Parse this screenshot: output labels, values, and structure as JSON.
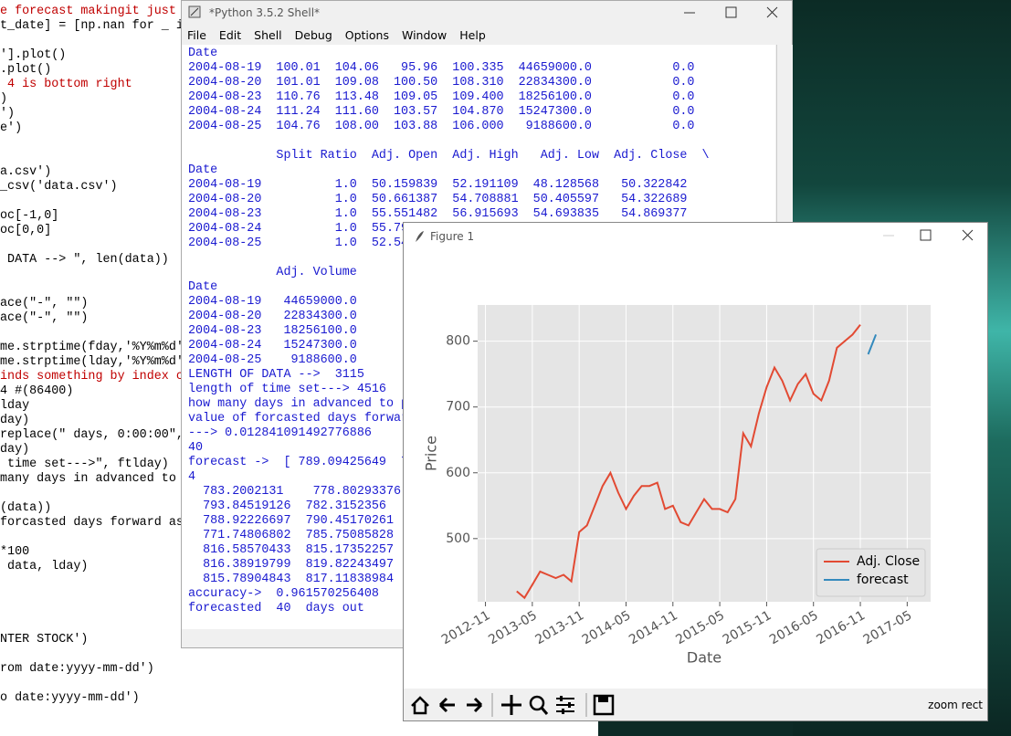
{
  "editor": {
    "lines": [
      "e forecast makingit just ",
      "t_date] = [np.nan for _ i",
      "",
      "'].plot()",
      ".plot()",
      " 4 is bottom right",
      ")",
      "')",
      "e')",
      "",
      "",
      "a.csv')",
      "_csv('data.csv')",
      "",
      "oc[-1,0]",
      "oc[0,0]",
      "",
      " DATA --> \", len(data))",
      "",
      "",
      "ace(\"-\", \"\")",
      "ace(\"-\", \"\")",
      "",
      "me.strptime(fday,'%Y%m%d'",
      "me.strptime(lday,'%Y%m%d'",
      "inds something by index c",
      "4 #(86400)",
      "lday",
      "day)",
      "replace(\" days, 0:00:00\",",
      "day)",
      " time set--->\", ftlday)",
      "many days in advanced to ",
      "",
      "(data))",
      "forcasted days forward as",
      "",
      "*100",
      " data, lday)",
      "",
      "",
      "",
      "",
      "NTER STOCK')",
      "",
      "rom date:yyyy-mm-dd')",
      "",
      "o date:yyyy-mm-dd')"
    ]
  },
  "shell": {
    "title": "*Python 3.5.2 Shell*",
    "menu": [
      "File",
      "Edit",
      "Shell",
      "Debug",
      "Options",
      "Window",
      "Help"
    ],
    "lines": [
      "Date",
      "2004-08-19  100.01  104.06   95.96  100.335  44659000.0           0.0",
      "2004-08-20  101.01  109.08  100.50  108.310  22834300.0           0.0",
      "2004-08-23  110.76  113.48  109.05  109.400  18256100.0           0.0",
      "2004-08-24  111.24  111.60  103.57  104.870  15247300.0           0.0",
      "2004-08-25  104.76  108.00  103.88  106.000   9188600.0           0.0",
      "",
      "            Split Ratio  Adj. Open  Adj. High   Adj. Low  Adj. Close  \\",
      "Date",
      "2004-08-19          1.0  50.159839  52.191109  48.128568   50.322842",
      "2004-08-20          1.0  50.661387  54.708881  50.405597   54.322689",
      "2004-08-23          1.0  55.551482  56.915693  54.693835   54.869377",
      "2004-08-24          1.0  55.79",
      "2004-08-25          1.0  52.54",
      "",
      "            Adj. Volume",
      "Date",
      "2004-08-19   44659000.0",
      "2004-08-20   22834300.0",
      "2004-08-23   18256100.0",
      "2004-08-24   15247300.0",
      "2004-08-25    9188600.0",
      "LENGTH OF DATA -->  3115",
      "length of time set---> 4516",
      "how many days in advanced to p",
      "value of forcasted days forwar",
      "---> 0.012841091492776886",
      "40",
      "forecast ->  [ 789.09425649  7",
      "4",
      "  783.2002131    778.80293376",
      "  793.84519126  782.3152356",
      "  788.92226697  790.45170261",
      "  771.74806802  785.75085828",
      "  816.58570433  815.17352257",
      "  816.38919799  819.82243497",
      "  815.78904843  817.11838984",
      "accuracy->  0.961570256408",
      "forecasted  40  days out"
    ]
  },
  "figure": {
    "title": "Figure 1",
    "status": "zoom rect",
    "chart_data": {
      "type": "line",
      "x_label": "Date",
      "y_label": "Price",
      "xlim": [
        "2012-10",
        "2017-08"
      ],
      "ylim": [
        404,
        855
      ],
      "xticks": [
        "2012-11",
        "2013-05",
        "2013-11",
        "2014-05",
        "2014-11",
        "2015-05",
        "2015-11",
        "2016-05",
        "2016-11",
        "2017-05"
      ],
      "yticks": [
        500,
        600,
        700,
        800
      ],
      "grid": true,
      "legend": "lower right",
      "series": [
        {
          "name": "Adj. Close",
          "color": "#E24A33",
          "x": [
            "2013-03",
            "2013-04",
            "2013-05",
            "2013-06",
            "2013-07",
            "2013-08",
            "2013-09",
            "2013-10",
            "2013-11",
            "2013-12",
            "2014-01",
            "2014-02",
            "2014-03",
            "2014-04",
            "2014-05",
            "2014-06",
            "2014-07",
            "2014-08",
            "2014-09",
            "2014-10",
            "2014-11",
            "2014-12",
            "2015-01",
            "2015-02",
            "2015-03",
            "2015-04",
            "2015-05",
            "2015-06",
            "2015-07",
            "2015-08",
            "2015-09",
            "2015-10",
            "2015-11",
            "2015-12",
            "2016-01",
            "2016-02",
            "2016-03",
            "2016-04",
            "2016-05",
            "2016-06",
            "2016-07",
            "2016-08",
            "2016-09",
            "2016-10",
            "2016-11"
          ],
          "values": [
            420,
            410,
            430,
            450,
            445,
            440,
            445,
            435,
            510,
            520,
            550,
            580,
            600,
            570,
            545,
            565,
            580,
            580,
            585,
            545,
            550,
            525,
            520,
            540,
            560,
            545,
            545,
            540,
            560,
            660,
            640,
            690,
            730,
            760,
            740,
            710,
            735,
            750,
            720,
            710,
            740,
            790,
            800,
            810,
            825
          ]
        },
        {
          "name": "forecast",
          "color": "#348ABD",
          "x": [
            "2016-12",
            "2017-01"
          ],
          "values": [
            780,
            810
          ]
        }
      ]
    }
  }
}
